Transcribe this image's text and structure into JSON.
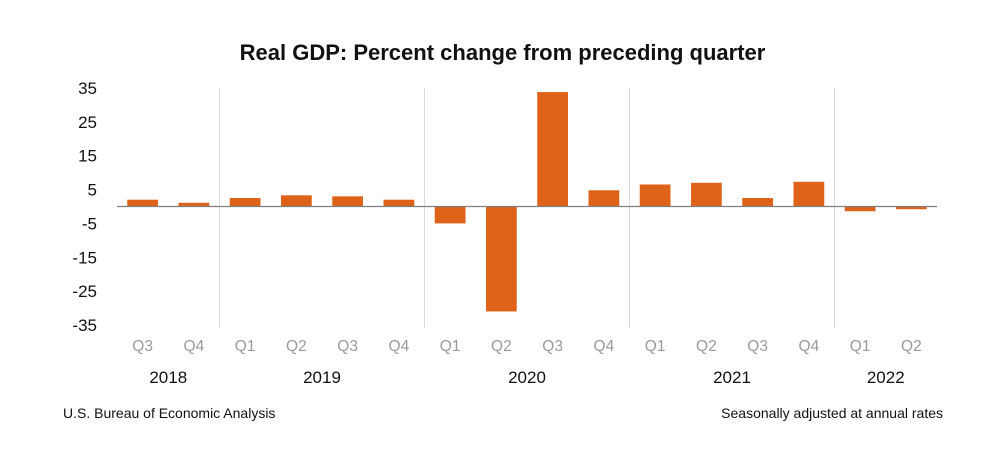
{
  "chart_data": {
    "type": "bar",
    "title": "Real GDP:  Percent change from preceding quarter",
    "xlabel": "",
    "ylabel": "",
    "ylim": [
      -35,
      35
    ],
    "yticks": [
      35,
      25,
      15,
      5,
      -5,
      -15,
      -25,
      -35
    ],
    "grid": false,
    "bar_color": "#de6318",
    "categories": [
      "Q3",
      "Q4",
      "Q1",
      "Q2",
      "Q3",
      "Q4",
      "Q1",
      "Q2",
      "Q3",
      "Q4",
      "Q1",
      "Q2",
      "Q3",
      "Q4",
      "Q1",
      "Q2"
    ],
    "years": [
      {
        "label": "2018",
        "quarters": 2
      },
      {
        "label": "2019",
        "quarters": 4
      },
      {
        "label": "2020",
        "quarters": 4
      },
      {
        "label": "2021",
        "quarters": 4
      },
      {
        "label": "2022",
        "quarters": 2
      }
    ],
    "values": [
      2.0,
      1.1,
      2.5,
      3.3,
      3.0,
      2.0,
      -5.0,
      -31.0,
      33.8,
      4.8,
      6.5,
      7.0,
      2.5,
      7.3,
      -1.4,
      -0.8
    ]
  },
  "footer": {
    "source": "U.S. Bureau of Economic Analysis",
    "note": "Seasonally adjusted at annual rates"
  }
}
